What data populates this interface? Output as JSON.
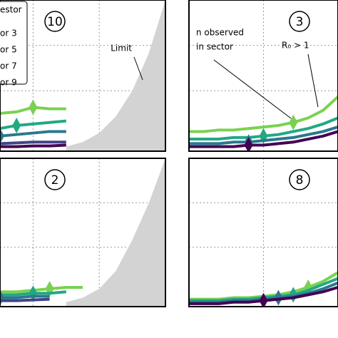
{
  "chart_data": [
    {
      "type": "line",
      "title": "10",
      "xlim": [
        0,
        10
      ],
      "ylim": [
        0,
        10
      ],
      "xticks": [
        2,
        6
      ],
      "yticks": [
        4,
        7
      ],
      "grid": true,
      "legend": true,
      "series": [
        {
          "name": "estor",
          "color": "#7ad151",
          "marker": 2,
          "values": [
            2.5,
            2.6,
            2.9,
            2.8,
            2.8,
            null,
            null,
            null,
            null,
            null,
            null
          ]
        },
        {
          "name": "or 3",
          "color": "#22a884",
          "marker": 1,
          "values": [
            1.5,
            1.7,
            1.8,
            1.9,
            2.0,
            null,
            null,
            null,
            null,
            null,
            null
          ]
        },
        {
          "name": "or 5",
          "color": "#2a788e",
          "marker": 0,
          "values": [
            1.0,
            1.1,
            1.2,
            1.3,
            1.3,
            null,
            null,
            null,
            null,
            null,
            null
          ]
        },
        {
          "name": "or 7",
          "color": "#414487",
          "values": [
            0.5,
            0.55,
            0.6,
            0.6,
            0.6,
            null,
            null,
            null,
            null,
            null,
            null
          ]
        },
        {
          "name": "or 9",
          "color": "#440154",
          "values": [
            0.3,
            0.3,
            0.35,
            0.35,
            0.4,
            null,
            null,
            null,
            null,
            null,
            null
          ]
        }
      ],
      "limit": {
        "label": "Limit",
        "color": "#d3d3d3",
        "values": [
          null,
          null,
          null,
          null,
          0.3,
          0.6,
          1.2,
          2.3,
          4,
          6.5,
          10
        ]
      }
    },
    {
      "type": "line",
      "title": "3",
      "xlim": [
        0,
        10
      ],
      "ylim": [
        0,
        10
      ],
      "xticks": [
        5
      ],
      "yticks": [
        4,
        7
      ],
      "grid": true,
      "series": [
        {
          "color": "#7ad151",
          "marker": 7,
          "values": [
            1.3,
            1.3,
            1.4,
            1.4,
            1.5,
            1.6,
            1.7,
            1.9,
            2.2,
            2.7,
            3.6
          ]
        },
        {
          "color": "#22a884",
          "marker": 5,
          "values": [
            0.8,
            0.8,
            0.8,
            0.9,
            0.9,
            1.0,
            1.1,
            1.3,
            1.5,
            1.8,
            2.2
          ]
        },
        {
          "color": "#2a788e",
          "marker": 4,
          "values": [
            0.5,
            0.5,
            0.5,
            0.6,
            0.6,
            0.7,
            0.8,
            0.9,
            1.1,
            1.3,
            1.6
          ]
        },
        {
          "color": "#440154",
          "marker": 4,
          "values": [
            0.3,
            0.3,
            0.3,
            0.3,
            0.4,
            0.4,
            0.5,
            0.6,
            0.8,
            1.0,
            1.3
          ]
        }
      ],
      "annotations": [
        {
          "lines": [
            "n observed",
            "in sector"
          ]
        },
        {
          "lines": [
            "R₀ > 1"
          ]
        }
      ]
    },
    {
      "type": "line",
      "title": "2",
      "xlim": [
        0,
        10
      ],
      "ylim": [
        0,
        10
      ],
      "xticks": [
        2,
        6
      ],
      "yticks": [
        4,
        7
      ],
      "grid": true,
      "series": [
        {
          "color": "#7ad151",
          "marker": 3,
          "values": [
            1.0,
            1.0,
            1.1,
            1.2,
            1.3,
            1.3,
            null,
            null,
            null,
            null,
            null
          ]
        },
        {
          "color": "#22a884",
          "marker": 2,
          "values": [
            0.8,
            0.8,
            0.9,
            0.9,
            1.0,
            null,
            null,
            null,
            null,
            null,
            null
          ]
        },
        {
          "color": "#2a788e",
          "marker": 0,
          "values": [
            0.6,
            0.6,
            0.7,
            0.7,
            null,
            null,
            null,
            null,
            null,
            null,
            null
          ]
        },
        {
          "color": "#414487",
          "values": [
            0.4,
            0.4,
            0.45,
            0.5,
            null,
            null,
            null,
            null,
            null,
            null,
            null
          ]
        }
      ],
      "limit": {
        "color": "#d3d3d3",
        "values": [
          null,
          null,
          null,
          null,
          0.3,
          0.6,
          1.2,
          2.4,
          4.5,
          7,
          10
        ]
      }
    },
    {
      "type": "line",
      "title": "8",
      "xlim": [
        0,
        10
      ],
      "ylim": [
        0,
        10
      ],
      "xticks": [
        5
      ],
      "yticks": [
        4,
        7
      ],
      "grid": true,
      "series": [
        {
          "color": "#7ad151",
          "marker": 8,
          "values": [
            0.5,
            0.5,
            0.5,
            0.6,
            0.6,
            0.7,
            0.8,
            1.0,
            1.3,
            1.7,
            2.3
          ]
        },
        {
          "color": "#22a884",
          "marker": 7,
          "values": [
            0.4,
            0.4,
            0.4,
            0.5,
            0.5,
            0.6,
            0.7,
            0.8,
            1.1,
            1.5,
            1.9
          ]
        },
        {
          "color": "#2a788e",
          "marker": 6,
          "values": [
            0.3,
            0.3,
            0.3,
            0.4,
            0.4,
            0.5,
            0.6,
            0.7,
            0.9,
            1.2,
            1.6
          ]
        },
        {
          "color": "#440154",
          "marker": 5,
          "values": [
            0.2,
            0.2,
            0.2,
            0.3,
            0.3,
            0.4,
            0.5,
            0.6,
            0.8,
            1.0,
            1.3
          ]
        }
      ]
    }
  ]
}
